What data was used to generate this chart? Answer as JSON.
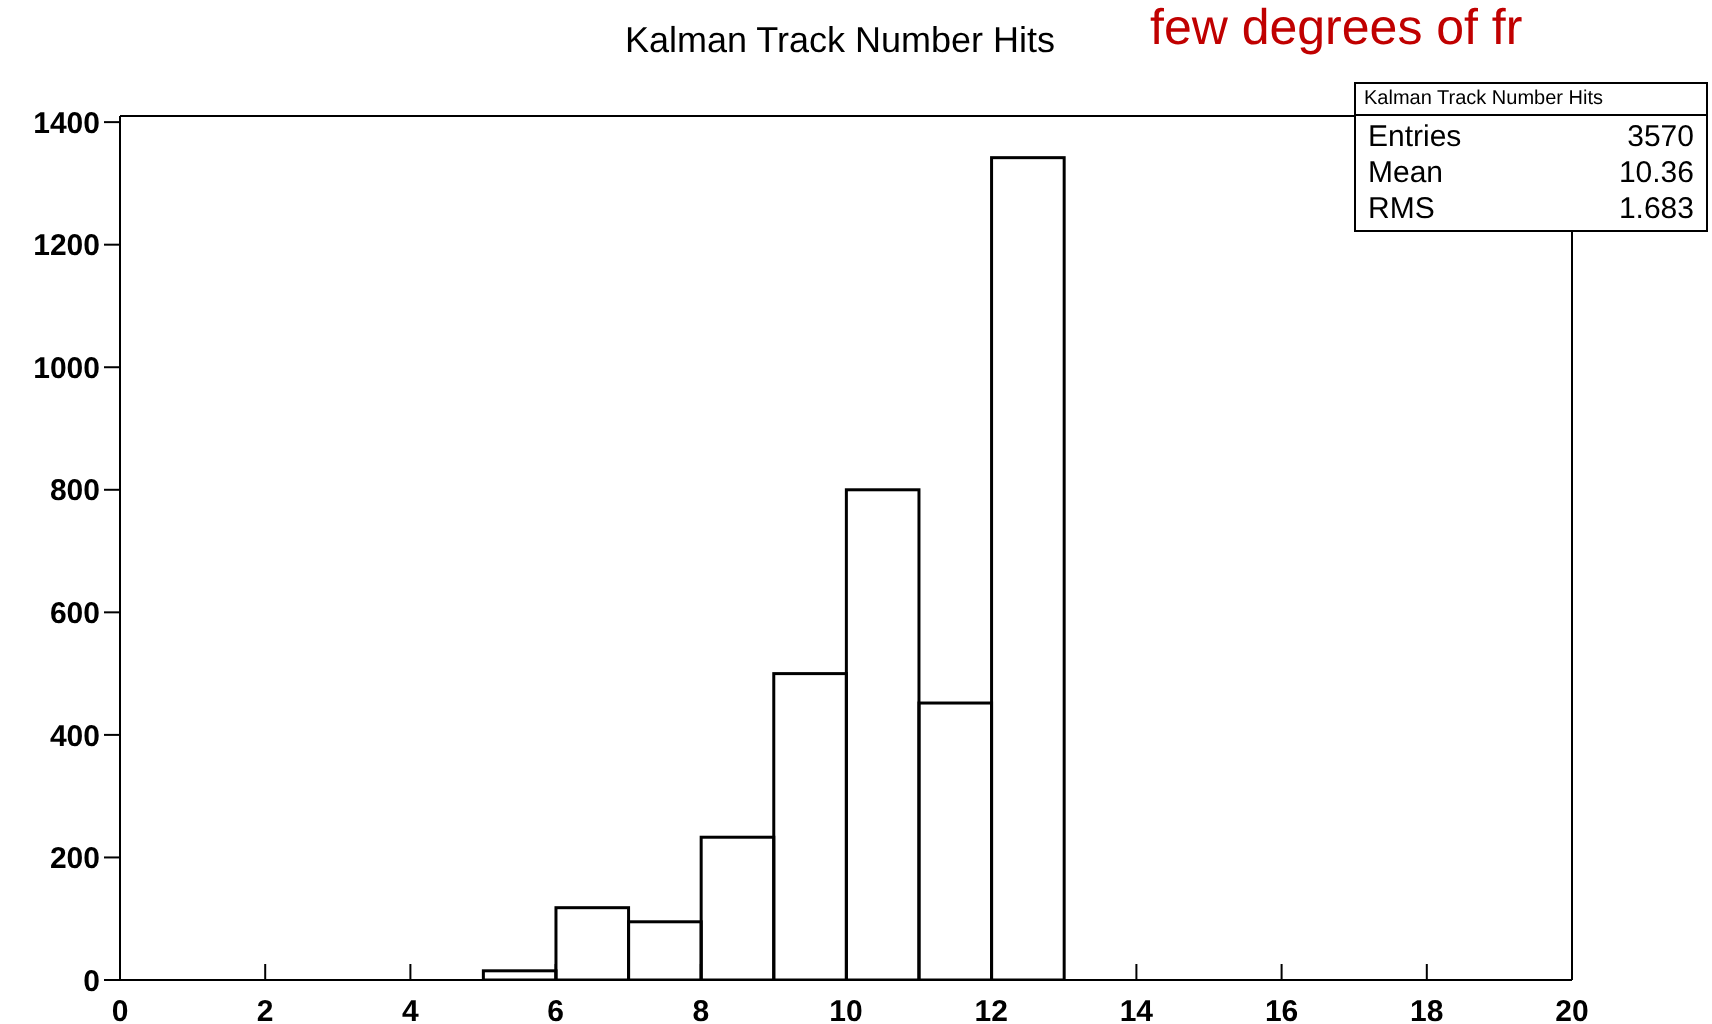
{
  "chart_data": {
    "type": "histogram",
    "title": "Kalman Track Number Hits",
    "bins": [
      5,
      6,
      7,
      8,
      9,
      10,
      11,
      12,
      13
    ],
    "values": [
      15,
      118,
      95,
      233,
      500,
      800,
      452,
      1342
    ],
    "color": "#000000",
    "xlim": [
      0,
      20
    ],
    "xticks": [
      0,
      2,
      4,
      6,
      8,
      10,
      12,
      14,
      16,
      18,
      20
    ],
    "ylim": [
      0,
      1410
    ],
    "yticks": [
      0,
      200,
      400,
      600,
      800,
      1000,
      1200,
      1400
    ],
    "grid": false,
    "annotations": [
      "few degrees of fr",
      "Kalman Track Number Hits",
      "Entries",
      "3570",
      "Mean",
      "10.36",
      "RMS",
      "1.683"
    ]
  }
}
